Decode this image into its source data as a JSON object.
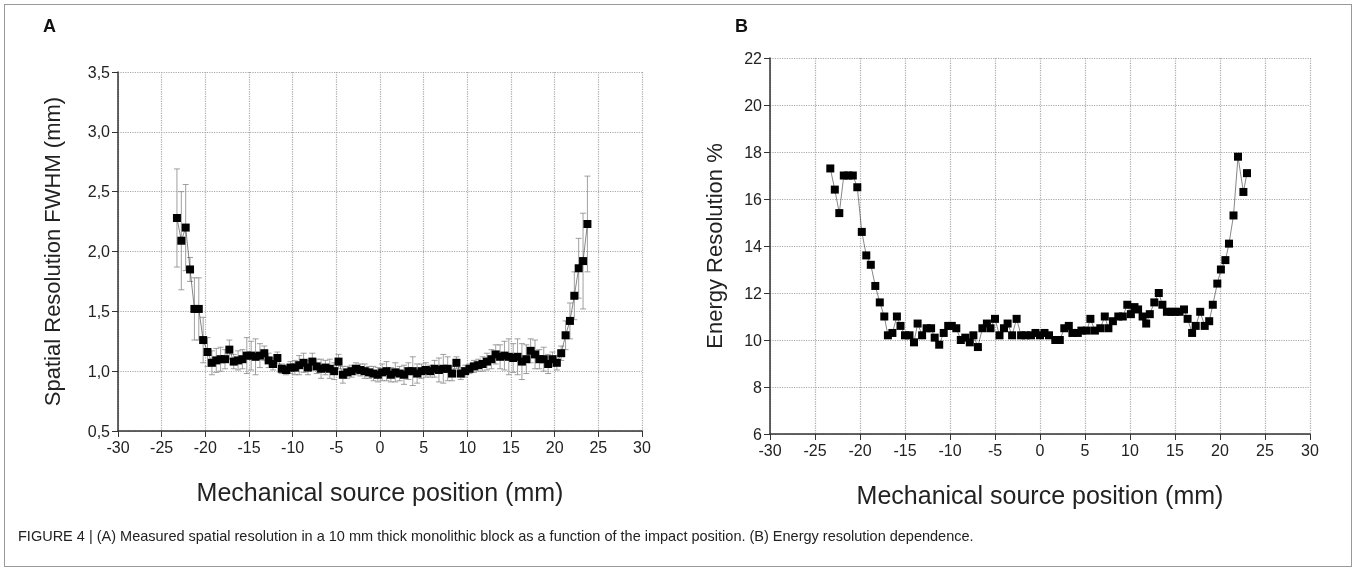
{
  "chart_data": [
    {
      "type": "line",
      "title": "A",
      "xlabel": "Mechanical source position (mm)",
      "ylabel": "Spatial Resolution FWHM (mm)",
      "xlim": [
        -30,
        30
      ],
      "xticks": [
        -30,
        -25,
        -20,
        -15,
        -10,
        -5,
        0,
        5,
        10,
        15,
        20,
        25,
        30
      ],
      "ylim": [
        0.5,
        3.5
      ],
      "yticks": [
        {
          "value": 0.5,
          "label": "0,5"
        },
        {
          "value": 1.0,
          "label": "1,0"
        },
        {
          "value": 1.5,
          "label": "1,5"
        },
        {
          "value": 2.0,
          "label": "2,0"
        },
        {
          "value": 2.5,
          "label": "2,5"
        },
        {
          "value": 3.0,
          "label": "3,0"
        },
        {
          "value": 3.5,
          "label": "3,5"
        }
      ],
      "grid": true,
      "marker": "square",
      "line_style": "solid",
      "series": [
        {
          "color": "#000000",
          "x": [
            -23.25,
            -22.75,
            -22.25,
            -21.75,
            -21.25,
            -20.75,
            -20.25,
            -19.75,
            -19.25,
            -18.75,
            -18.25,
            -17.75,
            -17.25,
            -16.75,
            -16.25,
            -15.75,
            -15.25,
            -14.75,
            -14.25,
            -13.75,
            -13.25,
            -12.75,
            -12.25,
            -11.75,
            -11.25,
            -10.75,
            -10.25,
            -9.75,
            -9.25,
            -8.75,
            -8.25,
            -7.75,
            -7.25,
            -6.75,
            -6.25,
            -5.75,
            -5.25,
            -4.75,
            -4.25,
            -3.75,
            -3.25,
            -2.75,
            -2.25,
            -1.75,
            -1.25,
            -0.75,
            -0.25,
            0.25,
            0.75,
            1.25,
            1.75,
            2.25,
            2.75,
            3.25,
            3.75,
            4.25,
            4.75,
            5.25,
            5.75,
            6.25,
            6.75,
            7.25,
            7.75,
            8.25,
            8.75,
            9.25,
            9.75,
            10.25,
            10.75,
            11.25,
            11.75,
            12.25,
            12.75,
            13.25,
            13.75,
            14.25,
            14.75,
            15.25,
            15.75,
            16.25,
            16.75,
            17.25,
            17.75,
            18.25,
            18.75,
            19.25,
            19.75,
            20.25,
            20.75,
            21.25,
            21.75,
            22.25,
            22.75,
            23.25,
            23.75
          ],
          "values": [
            2.28,
            2.09,
            2.2,
            1.85,
            1.52,
            1.52,
            1.26,
            1.16,
            1.07,
            1.09,
            1.1,
            1.1,
            1.18,
            1.08,
            1.09,
            1.1,
            1.13,
            1.13,
            1.12,
            1.13,
            1.15,
            1.09,
            1.06,
            1.11,
            1.02,
            1.01,
            1.03,
            1.03,
            1.05,
            1.07,
            1.03,
            1.08,
            1.04,
            1.02,
            1.03,
            1.02,
            1.0,
            1.08,
            0.97,
            0.99,
            1.0,
            1.02,
            1.01,
            1.0,
            0.99,
            0.98,
            0.97,
            0.99,
            1.0,
            0.97,
            0.99,
            0.98,
            0.97,
            1.0,
            1.0,
            0.98,
            1.0,
            1.01,
            1.0,
            1.02,
            1.01,
            1.02,
            1.02,
            0.98,
            1.07,
            0.98,
            1.0,
            1.02,
            1.04,
            1.05,
            1.06,
            1.08,
            1.1,
            1.14,
            1.12,
            1.13,
            1.12,
            1.11,
            1.12,
            1.08,
            1.1,
            1.17,
            1.14,
            1.1,
            1.1,
            1.06,
            1.1,
            1.07,
            1.15,
            1.3,
            1.42,
            1.63,
            1.86,
            1.92,
            2.23
          ],
          "errors": [
            0.41,
            0.41,
            0.36,
            0.1,
            0.26,
            0.26,
            0.19,
            0.12,
            0.1,
            0.1,
            0.1,
            0.08,
            0.08,
            0.06,
            0.08,
            0.08,
            0.15,
            0.12,
            0.15,
            0.1,
            0.06,
            0.06,
            0.05,
            0.05,
            0.04,
            0.04,
            0.05,
            0.06,
            0.08,
            0.08,
            0.06,
            0.07,
            0.06,
            0.08,
            0.06,
            0.08,
            0.07,
            0.06,
            0.07,
            0.05,
            0.05,
            0.05,
            0.05,
            0.06,
            0.05,
            0.06,
            0.06,
            0.07,
            0.08,
            0.06,
            0.08,
            0.06,
            0.08,
            0.07,
            0.12,
            0.08,
            0.06,
            0.06,
            0.05,
            0.07,
            0.1,
            0.12,
            0.1,
            0.06,
            0.05,
            0.05,
            0.05,
            0.04,
            0.05,
            0.05,
            0.06,
            0.07,
            0.08,
            0.08,
            0.1,
            0.12,
            0.15,
            0.12,
            0.15,
            0.15,
            0.12,
            0.1,
            0.12,
            0.08,
            0.1,
            0.08,
            0.06,
            0.06,
            0.06,
            0.12,
            0.15,
            0.2,
            0.25,
            0.4,
            0.4
          ]
        }
      ],
      "annotations": [
        "FIGURE 4 | (A) Measured spatial resolution in a 10 mm thick monolithic block as a function of the impact position. (B) Energy resolution dependence."
      ]
    },
    {
      "type": "line",
      "title": "B",
      "xlabel": "Mechanical source position (mm)",
      "ylabel": "Energy Resolution %",
      "xlim": [
        -30,
        30
      ],
      "xticks": [
        -30,
        -25,
        -20,
        -15,
        -10,
        -5,
        0,
        5,
        10,
        15,
        20,
        25,
        30
      ],
      "ylim": [
        6,
        22
      ],
      "yticks": [
        6,
        8,
        10,
        12,
        14,
        16,
        18,
        20,
        22
      ],
      "grid": true,
      "marker": "square",
      "line_style": "solid",
      "series": [
        {
          "color": "#000000",
          "x": [
            -23.3,
            -22.8,
            -22.3,
            -21.8,
            -21.3,
            -20.8,
            -20.3,
            -19.8,
            -19.3,
            -18.8,
            -18.3,
            -17.8,
            -17.3,
            -16.9,
            -16.4,
            -15.9,
            -15.5,
            -15.0,
            -14.5,
            -14.0,
            -13.6,
            -13.1,
            -12.6,
            -12.1,
            -11.7,
            -11.2,
            -10.7,
            -10.2,
            -9.8,
            -9.3,
            -8.8,
            -8.3,
            -7.8,
            -7.4,
            -6.9,
            -6.4,
            -5.9,
            -5.5,
            -5.0,
            -4.5,
            -4.0,
            -3.6,
            -3.1,
            -2.6,
            -2.1,
            -1.6,
            -1.0,
            -0.5,
            0.0,
            0.5,
            1.0,
            1.7,
            2.2,
            2.7,
            3.2,
            3.6,
            4.2,
            4.6,
            5.2,
            5.6,
            6.1,
            6.7,
            7.2,
            7.6,
            8.1,
            8.7,
            9.2,
            9.7,
            10.1,
            10.5,
            10.9,
            11.4,
            11.8,
            12.2,
            12.7,
            13.2,
            13.6,
            14.1,
            14.6,
            15.0,
            15.5,
            16.0,
            16.4,
            16.9,
            17.3,
            17.8,
            18.3,
            18.8,
            19.2,
            19.7,
            20.1,
            20.6,
            21.0,
            21.5,
            22.0,
            22.6,
            23.0
          ],
          "values": [
            17.3,
            16.4,
            15.4,
            17.0,
            17.0,
            17.0,
            16.5,
            14.6,
            13.6,
            13.2,
            12.3,
            11.6,
            11.0,
            10.2,
            10.3,
            11.0,
            10.6,
            10.2,
            10.2,
            9.9,
            10.7,
            10.2,
            10.5,
            10.5,
            10.1,
            9.8,
            10.3,
            10.6,
            10.6,
            10.5,
            10.0,
            10.1,
            9.9,
            10.2,
            9.7,
            10.5,
            10.7,
            10.5,
            10.9,
            10.2,
            10.5,
            10.7,
            10.2,
            10.9,
            10.2,
            10.2,
            10.2,
            10.3,
            10.2,
            10.3,
            10.2,
            10.0,
            10.0,
            10.5,
            10.6,
            10.3,
            10.3,
            10.4,
            10.4,
            10.9,
            10.4,
            10.5,
            11.0,
            10.5,
            10.8,
            11.0,
            11.0,
            11.5,
            11.1,
            11.4,
            11.3,
            11.0,
            10.7,
            11.1,
            11.6,
            12.0,
            11.5,
            11.2,
            11.2,
            11.2,
            11.2,
            11.3,
            10.9,
            10.3,
            10.6,
            11.2,
            10.6,
            10.8,
            11.5,
            12.4,
            13.0,
            13.4,
            14.1,
            15.3,
            17.8,
            16.3,
            17.1
          ]
        }
      ]
    }
  ]
}
